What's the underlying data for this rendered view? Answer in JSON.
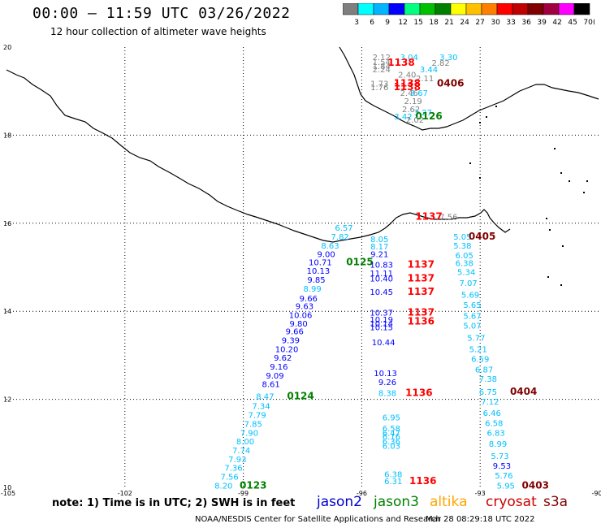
{
  "header": {
    "title": "00:00 – 11:59 UTC 03/26/2022",
    "subtitle": "12 hour collection of altimeter wave heights"
  },
  "colorbar": {
    "labels": [
      "3",
      "6",
      "9",
      "12",
      "15",
      "18",
      "21",
      "24",
      "27",
      "30",
      "33",
      "36",
      "39",
      "42",
      "45",
      "70"
    ],
    "unit": "(ft)",
    "colors": [
      "#7f7f7f",
      "#00ffff",
      "#00b4ff",
      "#0000ff",
      "#00ff80",
      "#00c000",
      "#008000",
      "#ffff00",
      "#ffc000",
      "#ff8000",
      "#ff0000",
      "#c00000",
      "#800000",
      "#a00040",
      "#ff00ff",
      "#000000"
    ]
  },
  "axes": {
    "lon_labels": [
      "-105",
      "-102",
      "-99",
      "-96",
      "-93",
      "-90"
    ],
    "lat_labels": [
      "20",
      "18",
      "16",
      "14",
      "12",
      "10"
    ]
  },
  "labels": [
    {
      "t": "2.12",
      "x": -95.5,
      "y": 19.78,
      "c": "#808080"
    },
    {
      "t": "3.04",
      "x": -94.8,
      "y": 19.78,
      "c": "#00c0ff"
    },
    {
      "t": "3.30",
      "x": -93.8,
      "y": 19.78,
      "c": "#00c0ff"
    },
    {
      "t": "1.54",
      "x": -95.5,
      "y": 19.67,
      "c": "#808080"
    },
    {
      "t": "1138",
      "x": -95.0,
      "y": 19.65,
      "c": "#ff0000",
      "b": 1
    },
    {
      "t": "2.82",
      "x": -94.0,
      "y": 19.65,
      "c": "#808080"
    },
    {
      "t": "1.84",
      "x": -95.5,
      "y": 19.58,
      "c": "#808080"
    },
    {
      "t": "2.24",
      "x": -95.5,
      "y": 19.5,
      "c": "#808080"
    },
    {
      "t": "3.44",
      "x": -94.3,
      "y": 19.5,
      "c": "#00c0ff"
    },
    {
      "t": "2.40",
      "x": -94.85,
      "y": 19.38,
      "c": "#808080"
    },
    {
      "t": "2.11",
      "x": -94.4,
      "y": 19.3,
      "c": "#808080"
    },
    {
      "t": "1.73",
      "x": -95.55,
      "y": 19.18,
      "c": "#808080"
    },
    {
      "t": "1138",
      "x": -94.85,
      "y": 19.18,
      "c": "#ff0000",
      "b": 1
    },
    {
      "t": "0406",
      "x": -93.75,
      "y": 19.18,
      "c": "#800000",
      "b": 1
    },
    {
      "t": "1.76",
      "x": -95.55,
      "y": 19.1,
      "c": "#808080"
    },
    {
      "t": "1138",
      "x": -94.85,
      "y": 19.1,
      "c": "#ff0000",
      "b": 1
    },
    {
      "t": "2.46",
      "x": -94.8,
      "y": 18.97,
      "c": "#808080"
    },
    {
      "t": "3.67",
      "x": -94.55,
      "y": 18.97,
      "c": "#00c0ff"
    },
    {
      "t": "2.19",
      "x": -94.7,
      "y": 18.78,
      "c": "#808080"
    },
    {
      "t": "2.62",
      "x": -94.75,
      "y": 18.6,
      "c": "#808080"
    },
    {
      "t": "3.27",
      "x": -94.45,
      "y": 18.52,
      "c": "#00c0ff"
    },
    {
      "t": "3.42",
      "x": -94.95,
      "y": 18.43,
      "c": "#00c0ff"
    },
    {
      "t": "0126",
      "x": -94.3,
      "y": 18.43,
      "c": "#008000",
      "b": 1
    },
    {
      "t": "2.02",
      "x": -94.65,
      "y": 18.36,
      "c": "#808080"
    },
    {
      "t": "1137",
      "x": -94.3,
      "y": 16.15,
      "c": "#ff0000",
      "b": 1
    },
    {
      "t": "7.56",
      "x": -93.8,
      "y": 16.15,
      "c": "#808080"
    },
    {
      "t": "6.57",
      "x": -96.45,
      "y": 15.9,
      "c": "#00c0ff"
    },
    {
      "t": "5.05",
      "x": -93.45,
      "y": 15.7,
      "c": "#00c0ff"
    },
    {
      "t": "0405",
      "x": -92.95,
      "y": 15.7,
      "c": "#800000",
      "b": 1
    },
    {
      "t": "7.82",
      "x": -96.55,
      "y": 15.7,
      "c": "#00c0ff"
    },
    {
      "t": "8.05",
      "x": -95.55,
      "y": 15.65,
      "c": "#00c0ff"
    },
    {
      "t": "5.38",
      "x": -93.45,
      "y": 15.5,
      "c": "#00c0ff"
    },
    {
      "t": "8.63",
      "x": -96.8,
      "y": 15.5,
      "c": "#00c0ff"
    },
    {
      "t": "8.17",
      "x": -95.55,
      "y": 15.48,
      "c": "#00c0ff"
    },
    {
      "t": "6.05",
      "x": -93.4,
      "y": 15.28,
      "c": "#00c0ff"
    },
    {
      "t": "9.00",
      "x": -96.9,
      "y": 15.3,
      "c": "#0000ff"
    },
    {
      "t": "9.21",
      "x": -95.55,
      "y": 15.3,
      "c": "#0000ff"
    },
    {
      "t": "10.71",
      "x": -97.05,
      "y": 15.12,
      "c": "#0000ff"
    },
    {
      "t": "0125",
      "x": -96.05,
      "y": 15.12,
      "c": "#008000",
      "b": 1
    },
    {
      "t": "10.83",
      "x": -95.5,
      "y": 15.06,
      "c": "#0000ff"
    },
    {
      "t": "1137",
      "x": -94.5,
      "y": 15.06,
      "c": "#ff0000",
      "b": 1
    },
    {
      "t": "6.38",
      "x": -93.4,
      "y": 15.1,
      "c": "#00c0ff"
    },
    {
      "t": "10.13",
      "x": -97.1,
      "y": 14.93,
      "c": "#0000ff"
    },
    {
      "t": "11.11",
      "x": -95.5,
      "y": 14.87,
      "c": "#0000ff"
    },
    {
      "t": "5.34",
      "x": -93.35,
      "y": 14.9,
      "c": "#00c0ff"
    },
    {
      "t": "9.85",
      "x": -97.15,
      "y": 14.72,
      "c": "#0000ff"
    },
    {
      "t": "10.40",
      "x": -95.5,
      "y": 14.75,
      "c": "#0000ff"
    },
    {
      "t": "1137",
      "x": -94.5,
      "y": 14.75,
      "c": "#ff0000",
      "b": 1
    },
    {
      "t": "7.07",
      "x": -93.3,
      "y": 14.65,
      "c": "#00c0ff"
    },
    {
      "t": "8.99",
      "x": -97.25,
      "y": 14.52,
      "c": "#00c0ff"
    },
    {
      "t": "10.45",
      "x": -95.5,
      "y": 14.45,
      "c": "#0000ff"
    },
    {
      "t": "1137",
      "x": -94.5,
      "y": 14.45,
      "c": "#ff0000",
      "b": 1
    },
    {
      "t": "5.69",
      "x": -93.25,
      "y": 14.38,
      "c": "#00c0ff"
    },
    {
      "t": "9.66",
      "x": -97.35,
      "y": 14.3,
      "c": "#0000ff"
    },
    {
      "t": "9.63",
      "x": -97.45,
      "y": 14.12,
      "c": "#0000ff"
    },
    {
      "t": "5.65",
      "x": -93.2,
      "y": 14.15,
      "c": "#00c0ff"
    },
    {
      "t": "10.37",
      "x": -95.5,
      "y": 13.98,
      "c": "#0000ff"
    },
    {
      "t": "1137",
      "x": -94.5,
      "y": 13.98,
      "c": "#ff0000",
      "b": 1
    },
    {
      "t": "10.06",
      "x": -97.55,
      "y": 13.92,
      "c": "#0000ff"
    },
    {
      "t": "5.67",
      "x": -93.2,
      "y": 13.9,
      "c": "#00c0ff"
    },
    {
      "t": "10.19",
      "x": -95.5,
      "y": 13.82,
      "c": "#0000ff"
    },
    {
      "t": "1136",
      "x": -94.5,
      "y": 13.77,
      "c": "#ff0000",
      "b": 1
    },
    {
      "t": "9.80",
      "x": -97.6,
      "y": 13.73,
      "c": "#0000ff"
    },
    {
      "t": "10.14",
      "x": -95.5,
      "y": 13.73,
      "c": "#0000ff"
    },
    {
      "t": "5.07",
      "x": -93.2,
      "y": 13.68,
      "c": "#00c0ff"
    },
    {
      "t": "10.15",
      "x": -95.5,
      "y": 13.64,
      "c": "#0000ff"
    },
    {
      "t": "9.66",
      "x": -97.7,
      "y": 13.55,
      "c": "#0000ff"
    },
    {
      "t": "5.77",
      "x": -93.1,
      "y": 13.4,
      "c": "#00c0ff"
    },
    {
      "t": "9.39",
      "x": -97.8,
      "y": 13.35,
      "c": "#0000ff"
    },
    {
      "t": "10.44",
      "x": -95.45,
      "y": 13.3,
      "c": "#0000ff"
    },
    {
      "t": "10.20",
      "x": -97.9,
      "y": 13.15,
      "c": "#0000ff"
    },
    {
      "t": "5.21",
      "x": -93.05,
      "y": 13.15,
      "c": "#00c0ff"
    },
    {
      "t": "9.62",
      "x": -98.0,
      "y": 12.95,
      "c": "#0000ff"
    },
    {
      "t": "6.59",
      "x": -93.0,
      "y": 12.92,
      "c": "#00c0ff"
    },
    {
      "t": "9.16",
      "x": -98.1,
      "y": 12.75,
      "c": "#0000ff"
    },
    {
      "t": "6.87",
      "x": -92.9,
      "y": 12.68,
      "c": "#00c0ff"
    },
    {
      "t": "10.13",
      "x": -95.4,
      "y": 12.6,
      "c": "#0000ff"
    },
    {
      "t": "9.09",
      "x": -98.2,
      "y": 12.55,
      "c": "#0000ff"
    },
    {
      "t": "7.38",
      "x": -92.8,
      "y": 12.47,
      "c": "#00c0ff"
    },
    {
      "t": "9.26",
      "x": -95.35,
      "y": 12.4,
      "c": "#0000ff"
    },
    {
      "t": "8.61",
      "x": -98.3,
      "y": 12.35,
      "c": "#0000ff"
    },
    {
      "t": "6.75",
      "x": -92.8,
      "y": 12.18,
      "c": "#00c0ff"
    },
    {
      "t": "0404",
      "x": -91.9,
      "y": 12.18,
      "c": "#800000",
      "b": 1
    },
    {
      "t": "8.38",
      "x": -95.35,
      "y": 12.15,
      "c": "#00c0ff"
    },
    {
      "t": "1136",
      "x": -94.55,
      "y": 12.15,
      "c": "#ff0000",
      "b": 1
    },
    {
      "t": "8.47",
      "x": -98.45,
      "y": 12.08,
      "c": "#00c0ff"
    },
    {
      "t": "0124",
      "x": -97.55,
      "y": 12.08,
      "c": "#008000",
      "b": 1
    },
    {
      "t": "7.12",
      "x": -92.75,
      "y": 11.96,
      "c": "#00c0ff"
    },
    {
      "t": "7.34",
      "x": -98.55,
      "y": 11.85,
      "c": "#00c0ff"
    },
    {
      "t": "6.46",
      "x": -92.7,
      "y": 11.7,
      "c": "#00c0ff"
    },
    {
      "t": "7.79",
      "x": -98.65,
      "y": 11.65,
      "c": "#00c0ff"
    },
    {
      "t": "6.95",
      "x": -95.25,
      "y": 11.6,
      "c": "#00c0ff"
    },
    {
      "t": "6.58",
      "x": -92.65,
      "y": 11.47,
      "c": "#00c0ff"
    },
    {
      "t": "7.85",
      "x": -98.75,
      "y": 11.45,
      "c": "#00c0ff"
    },
    {
      "t": "6.58",
      "x": -95.25,
      "y": 11.35,
      "c": "#00c0ff"
    },
    {
      "t": "7.90",
      "x": -98.85,
      "y": 11.25,
      "c": "#00c0ff"
    },
    {
      "t": "6.47",
      "x": -95.25,
      "y": 11.25,
      "c": "#00c0ff"
    },
    {
      "t": "6.83",
      "x": -92.6,
      "y": 11.25,
      "c": "#00c0ff"
    },
    {
      "t": "6.16",
      "x": -95.25,
      "y": 11.16,
      "c": "#00c0ff"
    },
    {
      "t": "6.36",
      "x": -95.25,
      "y": 11.05,
      "c": "#00c0ff"
    },
    {
      "t": "8.00",
      "x": -98.95,
      "y": 11.05,
      "c": "#00c0ff"
    },
    {
      "t": "8.99",
      "x": -92.55,
      "y": 11.0,
      "c": "#00c0ff"
    },
    {
      "t": "6.03",
      "x": -95.25,
      "y": 10.95,
      "c": "#00c0ff"
    },
    {
      "t": "7.74",
      "x": -99.05,
      "y": 10.85,
      "c": "#00c0ff"
    },
    {
      "t": "5.73",
      "x": -92.5,
      "y": 10.72,
      "c": "#00c0ff"
    },
    {
      "t": "7.93",
      "x": -99.15,
      "y": 10.65,
      "c": "#00c0ff"
    },
    {
      "t": "9.53",
      "x": -92.45,
      "y": 10.5,
      "c": "#0000ff"
    },
    {
      "t": "7.36",
      "x": -99.25,
      "y": 10.45,
      "c": "#00c0ff"
    },
    {
      "t": "6.38",
      "x": -95.2,
      "y": 10.3,
      "c": "#00c0ff"
    },
    {
      "t": "5.76",
      "x": -92.4,
      "y": 10.28,
      "c": "#00c0ff"
    },
    {
      "t": "7.56",
      "x": -99.35,
      "y": 10.25,
      "c": "#00c0ff"
    },
    {
      "t": "6.31",
      "x": -95.2,
      "y": 10.15,
      "c": "#00c0ff"
    },
    {
      "t": "1136",
      "x": -94.45,
      "y": 10.15,
      "c": "#ff0000",
      "b": 1
    },
    {
      "t": "8.20",
      "x": -99.5,
      "y": 10.05,
      "c": "#00c0ff"
    },
    {
      "t": "0123",
      "x": -98.75,
      "y": 10.05,
      "c": "#008000",
      "b": 1
    },
    {
      "t": "5.95",
      "x": -92.35,
      "y": 10.05,
      "c": "#00c0ff"
    },
    {
      "t": "0403",
      "x": -91.6,
      "y": 10.05,
      "c": "#800000",
      "b": 1
    }
  ],
  "footer": {
    "note": "note: 1) Time is in UTC; 2) SWH is in feet",
    "legend": [
      {
        "name": "jason2",
        "color": "#0000cc"
      },
      {
        "name": "jason3",
        "color": "#008000"
      },
      {
        "name": "altika",
        "color": "#ffa500"
      },
      {
        "name": "cryosat",
        "color": "#cc0000"
      },
      {
        "name": "s3a",
        "color": "#800000"
      }
    ],
    "credit": "NOAA/NESDIS Center for Satellite Applications and Research",
    "timestamp": "Mar 28 08:29:18 UTC 2022"
  }
}
